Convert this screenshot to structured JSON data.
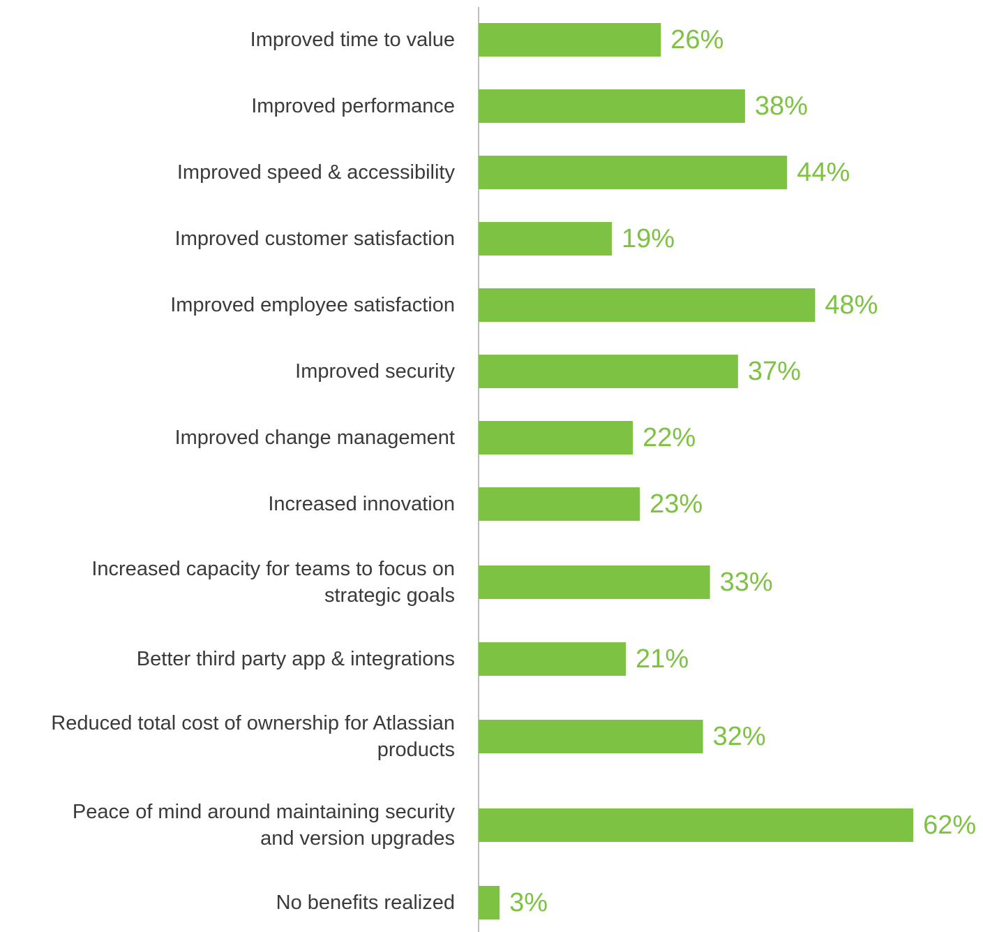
{
  "chart_data": {
    "type": "bar",
    "orientation": "horizontal",
    "categories": [
      "Improved time to value",
      "Improved performance",
      "Improved speed & accessibility",
      "Improved customer satisfaction",
      "Improved employee satisfaction",
      "Improved security",
      "Improved change management",
      "Increased innovation",
      "Increased capacity for teams to focus on strategic goals",
      "Better third party app & integrations",
      "Reduced total cost of ownership for Atlassian products",
      "Peace of mind around maintaining security and version upgrades",
      "No benefits realized"
    ],
    "category_lines": [
      [
        "Improved time to value"
      ],
      [
        "Improved performance"
      ],
      [
        "Improved speed & accessibility"
      ],
      [
        "Improved customer satisfaction"
      ],
      [
        "Improved employee satisfaction"
      ],
      [
        "Improved security"
      ],
      [
        "Improved change management"
      ],
      [
        "Increased innovation"
      ],
      [
        "Increased capacity for teams to focus on",
        "strategic goals"
      ],
      [
        "Better third party app & integrations"
      ],
      [
        "Reduced total cost of ownership for Atlassian",
        "products"
      ],
      [
        "Peace of mind around maintaining security",
        "and version upgrades"
      ],
      [
        "No benefits realized"
      ]
    ],
    "values": [
      26,
      38,
      44,
      19,
      48,
      37,
      22,
      23,
      33,
      21,
      32,
      62,
      3
    ],
    "value_labels": [
      "26%",
      "38%",
      "44%",
      "19%",
      "48%",
      "37%",
      "22%",
      "23%",
      "33%",
      "21%",
      "32%",
      "62%",
      "3%"
    ],
    "xlim": [
      0,
      62
    ],
    "title": "",
    "xlabel": "",
    "ylabel": "",
    "grid": false,
    "legend": "none",
    "bar_color": "#7dc242",
    "value_label_color": "#7dc242",
    "axis_color": "#bdbdbd",
    "category_label_color": "#3a3a3a"
  }
}
